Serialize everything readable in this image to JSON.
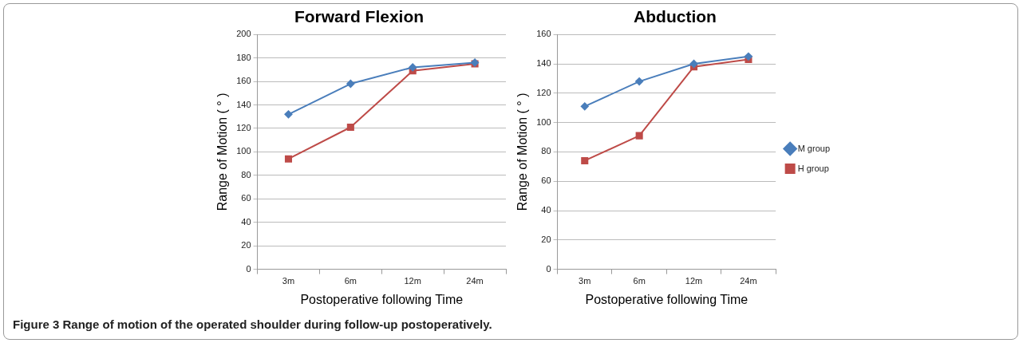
{
  "chart_data": [
    {
      "type": "line",
      "title": "Forward Flexion",
      "xlabel": "Postoperative following Time",
      "ylabel": "Range of Motion ( ° )",
      "categories": [
        "3m",
        "6m",
        "12m",
        "24m"
      ],
      "series": [
        {
          "color": "#4a7ebb",
          "marker": "diamond",
          "values": [
            132,
            158,
            172,
            176
          ]
        },
        {
          "color": "#be4b48",
          "marker": "square",
          "values": [
            94,
            121,
            169,
            175
          ]
        }
      ],
      "ylim": [
        0,
        200
      ],
      "yticks": [
        0,
        20,
        40,
        60,
        80,
        100,
        120,
        140,
        160,
        180,
        200
      ],
      "grid": "y",
      "legend": false,
      "annotations": [
        "Figure 3 Range of motion of the operated shoulder during follow-up postoperatively."
      ]
    },
    {
      "type": "line",
      "title": "Abduction",
      "xlabel": "Postoperative following Time",
      "ylabel": "Range of Motion ( ° )",
      "categories": [
        "3m",
        "6m",
        "12m",
        "24m"
      ],
      "series": [
        {
          "name": "M group",
          "color": "#4a7ebb",
          "marker": "diamond",
          "values": [
            111,
            128,
            140,
            145
          ]
        },
        {
          "name": "H group",
          "color": "#be4b48",
          "marker": "square",
          "values": [
            74,
            91,
            138,
            143
          ]
        }
      ],
      "ylim": [
        0,
        160
      ],
      "yticks": [
        0,
        20,
        40,
        60,
        80,
        100,
        120,
        140,
        160
      ],
      "grid": "y",
      "legend": "right"
    }
  ]
}
